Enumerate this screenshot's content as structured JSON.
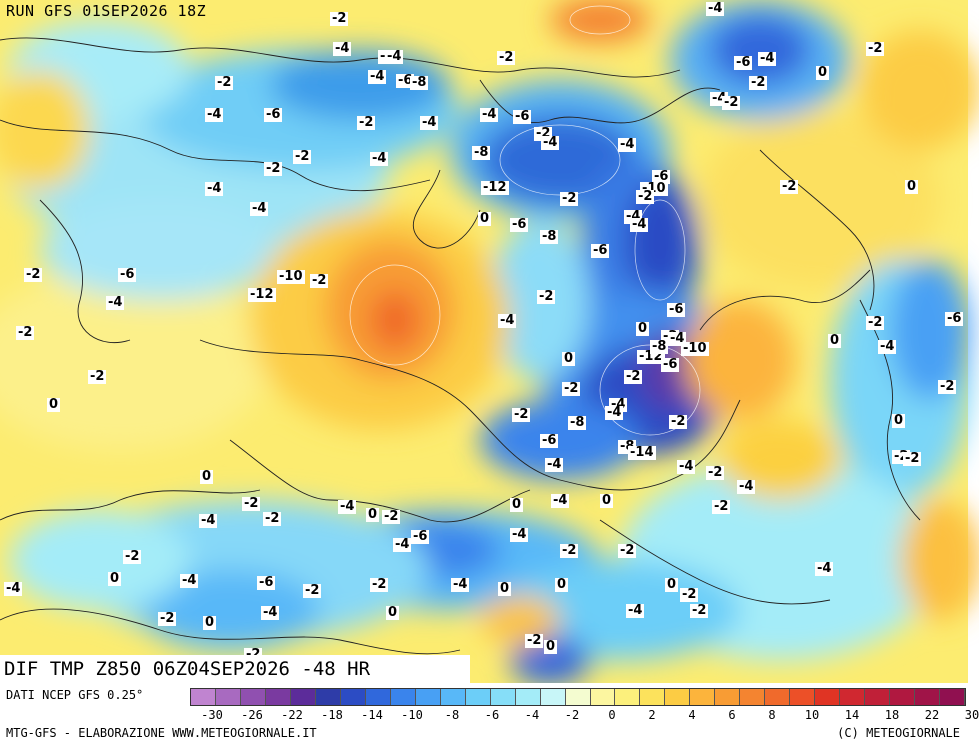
{
  "header": {
    "run_title": "RUN GFS 01SEP2026 18Z"
  },
  "footer": {
    "map_caption": "DIF TMP Z850 06Z04SEP2026 -48 HR",
    "data_source": "DATI NCEP GFS 0.25°",
    "credit_left": "MTG-GFS - ELABORAZIONE WWW.METEOGIORNALE.IT",
    "credit_right": "(C) METEOGIORNALE"
  },
  "legend": {
    "colors": [
      "#c084d0",
      "#a86ac0",
      "#9050b0",
      "#7a3aa0",
      "#5c2c9a",
      "#2e3ca8",
      "#2c4cc4",
      "#3068dc",
      "#3a84ec",
      "#48a0f4",
      "#58b8f8",
      "#6ccef8",
      "#86def8",
      "#a4ecf8",
      "#c8f6f8",
      "#f4fcd0",
      "#fcf6a0",
      "#fcf07c",
      "#fce25c",
      "#fccc44",
      "#fcb43c",
      "#f89c34",
      "#f48430",
      "#f06a2c",
      "#ec5028",
      "#e03424",
      "#d02830",
      "#c02038",
      "#b01840",
      "#a01448",
      "#901050"
    ],
    "tick_labels": [
      "-30",
      "-26",
      "-22",
      "-18",
      "-14",
      "-10",
      "-8",
      "-6",
      "-4",
      "-2",
      "0",
      "2",
      "4",
      "6",
      "8",
      "10",
      "14",
      "18",
      "22",
      "30"
    ]
  },
  "map_labels": [
    "-2",
    "-4",
    "-4",
    "-4",
    "-6",
    "-4",
    "-8",
    "-2",
    "-4",
    "-6",
    "-2",
    "-4",
    "-4",
    "-2",
    "-6",
    "-2",
    "-4",
    "-4",
    "-6",
    "-10",
    "-12",
    "-8",
    "-2",
    "-2",
    "-4",
    "-4",
    "-6",
    "-6",
    "-8",
    "-2",
    "-2",
    "-4",
    "-4",
    "-2",
    "-6",
    "-10",
    "-12",
    "-2",
    "-4",
    "0",
    "-2",
    "-4",
    "-4",
    "-2",
    "-2",
    "0",
    "0",
    "-2",
    "-8",
    "-6",
    "-4",
    "-12",
    "-2",
    "0",
    "-2",
    "-4",
    "-4",
    "-2",
    "-6",
    "-8",
    "-4",
    "-10",
    "-8",
    "-4",
    "-6",
    "-14",
    "-2",
    "0",
    "-2",
    "-4",
    "-2",
    "-4",
    "0",
    "-2",
    "-4",
    "-6",
    "-4",
    "-2",
    "-2",
    "0",
    "-4",
    "0",
    "-2",
    "-4",
    "-2",
    "-4",
    "-2",
    "-2",
    "0",
    "-4",
    "-2",
    "-6",
    "0",
    "-2",
    "0",
    "-2",
    "0",
    "-2",
    "-4",
    "-6",
    "-2",
    "-4",
    "-2",
    "-4",
    "-2",
    "0",
    "-4",
    "-6",
    "-2",
    "-4",
    "0",
    "0",
    "-2",
    "-4",
    "0",
    "-2",
    "-4",
    "-2",
    "-4",
    "0",
    "-2",
    "-2",
    "-2",
    "0",
    "0"
  ]
}
